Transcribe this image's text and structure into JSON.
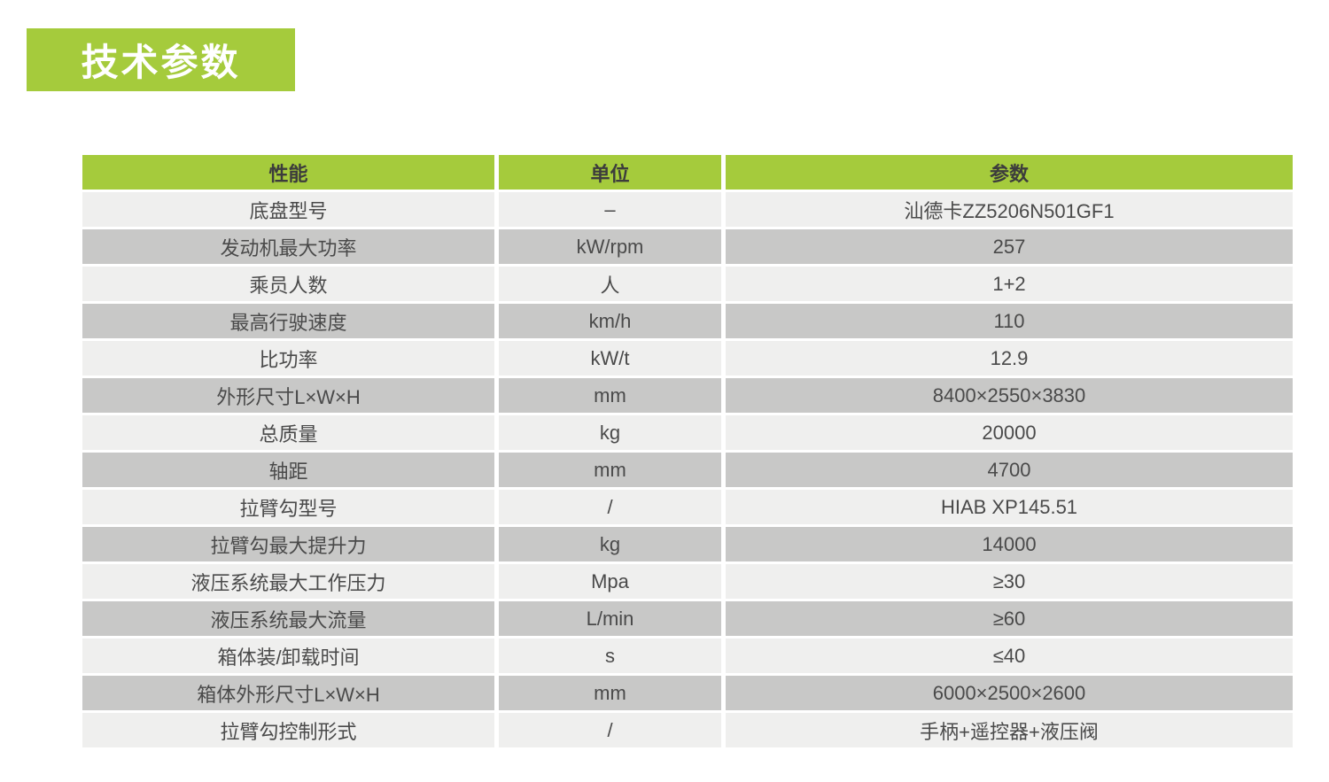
{
  "page": {
    "title_badge": "技术参数"
  },
  "colors": {
    "accent_green": "#a5cb3c",
    "row_light": "#efefee",
    "row_dark": "#c8c8c7",
    "header_text": "#3c3c3c",
    "body_text": "#4a4a4a",
    "badge_text": "#ffffff"
  },
  "table": {
    "columns": [
      "性能",
      "单位",
      "参数"
    ],
    "rows": [
      [
        "底盘型号",
        "–",
        "汕德卡ZZ5206N501GF1"
      ],
      [
        "发动机最大功率",
        "kW/rpm",
        "257"
      ],
      [
        "乘员人数",
        "人",
        "1+2"
      ],
      [
        "最高行驶速度",
        "km/h",
        "110"
      ],
      [
        "比功率",
        "kW/t",
        "12.9"
      ],
      [
        "外形尺寸L×W×H",
        "mm",
        "8400×2550×3830"
      ],
      [
        "总质量",
        "kg",
        "20000"
      ],
      [
        "轴距",
        "mm",
        "4700"
      ],
      [
        "拉臂勾型号",
        "/",
        "HIAB XP145.51"
      ],
      [
        "拉臂勾最大提升力",
        "kg",
        "14000"
      ],
      [
        "液压系统最大工作压力",
        "Mpa",
        "≥30"
      ],
      [
        "液压系统最大流量",
        "L/min",
        "≥60"
      ],
      [
        "箱体装/卸载时间",
        "s",
        "≤40"
      ],
      [
        "箱体外形尺寸L×W×H",
        "mm",
        "6000×2500×2600"
      ],
      [
        "拉臂勾控制形式",
        "/",
        "手柄+遥控器+液压阀"
      ]
    ]
  }
}
